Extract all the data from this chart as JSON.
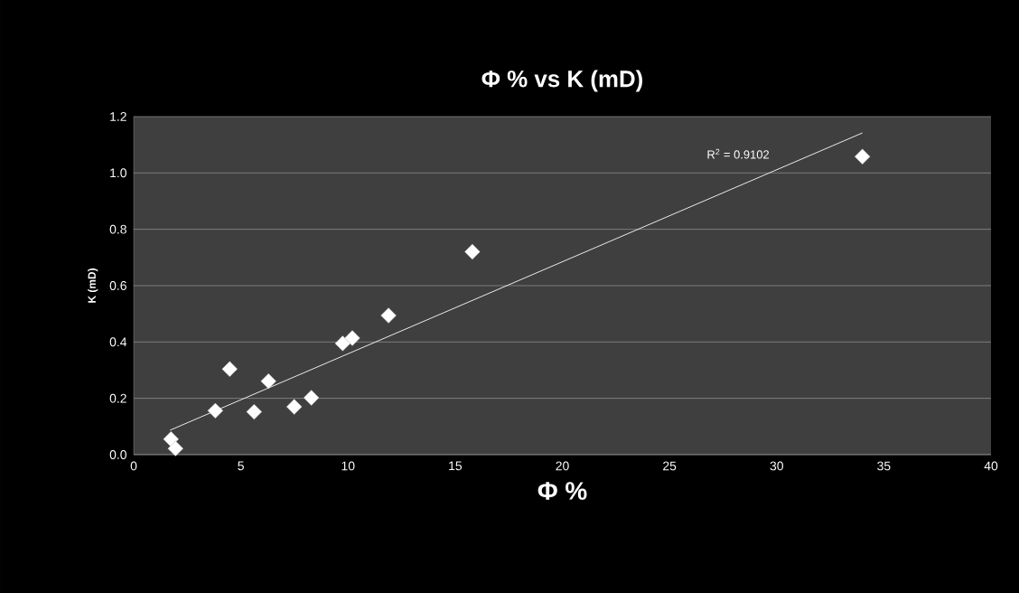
{
  "chart_data": {
    "type": "scatter",
    "title": "Φ % vs K (mD)",
    "xlabel": "Φ %",
    "ylabel": "K (mD)",
    "xlim": [
      0,
      40
    ],
    "xticks": [
      0,
      5,
      10,
      15,
      20,
      25,
      30,
      35,
      40
    ],
    "ylim": [
      0,
      1.2
    ],
    "yticks": [
      {
        "value": 0,
        "label": "0.0"
      },
      0.2,
      0.4,
      0.6,
      0.8,
      {
        "value": 1,
        "label": "1.0"
      },
      1.2
    ],
    "grid": "y",
    "series": [
      {
        "marker": "diamond",
        "color": "#ffffff",
        "x": [
          1.74,
          1.95,
          3.81,
          4.48,
          5.62,
          6.29,
          7.49,
          8.29,
          9.75,
          10.2,
          11.89,
          15.8,
          34.0
        ],
        "values": [
          0.055,
          0.022,
          0.156,
          0.304,
          0.152,
          0.261,
          0.17,
          0.202,
          0.395,
          0.414,
          0.494,
          0.72,
          1.058
        ]
      },
      {
        "type": "line",
        "color": "#ffffff",
        "x": [
          1.7,
          34.0
        ],
        "values": [
          0.087,
          1.142
        ]
      }
    ],
    "annotations": [
      "R$^{2}$ = 0.9102"
    ]
  }
}
